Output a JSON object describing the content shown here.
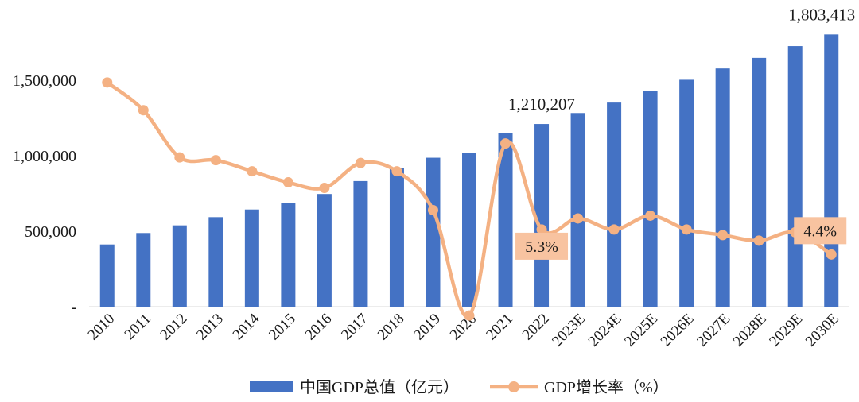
{
  "chart_data": {
    "type": "bar+line",
    "categories": [
      "2010",
      "2011",
      "2012",
      "2013",
      "2014",
      "2015",
      "2016",
      "2017",
      "2018",
      "2019",
      "2020",
      "2021",
      "2022",
      "2023E",
      "2024E",
      "2025E",
      "2026E",
      "2027E",
      "2028E",
      "2029E",
      "2030E"
    ],
    "series": [
      {
        "name": "中国GDP总值（亿元）",
        "type": "bar",
        "axis": "left",
        "values": [
          412119,
          487940,
          538580,
          592963,
          643563,
          688858,
          746395,
          832036,
          919281,
          986515,
          1015986,
          1149237,
          1210207,
          1282800,
          1352000,
          1430000,
          1503000,
          1578000,
          1648000,
          1726000,
          1803413
        ]
      },
      {
        "name": "GDP增长率（%）",
        "type": "line",
        "axis": "right",
        "values": [
          10.6,
          9.6,
          7.9,
          7.8,
          7.4,
          7.0,
          6.8,
          7.7,
          7.4,
          6.0,
          2.2,
          8.4,
          5.3,
          5.7,
          5.3,
          5.8,
          5.3,
          5.1,
          4.9,
          5.2,
          4.4
        ]
      }
    ],
    "ylim": [
      0,
      1800000
    ],
    "y2lim": [
      0,
      13
    ],
    "yticks": [
      {
        "value": 0,
        "label": "-"
      },
      {
        "value": 500000,
        "label": "500,000"
      },
      {
        "value": 1000000,
        "label": "1,000,000"
      },
      {
        "value": 1500000,
        "label": "1,500,000"
      }
    ],
    "bar_labels": [
      {
        "index": 12,
        "text": "1,210,207"
      },
      {
        "index": 20,
        "text": "1,803,413"
      }
    ],
    "line_callouts": [
      {
        "index": 12,
        "text": "5.3%"
      },
      {
        "index": 20,
        "text": "4.4%"
      }
    ],
    "legend_position": "bottom",
    "grid": false,
    "colors": {
      "bar": "#4472C4",
      "line": "#F4B183",
      "callout_fill": "#F8C3A0",
      "axis": "#d9d9d9"
    }
  }
}
